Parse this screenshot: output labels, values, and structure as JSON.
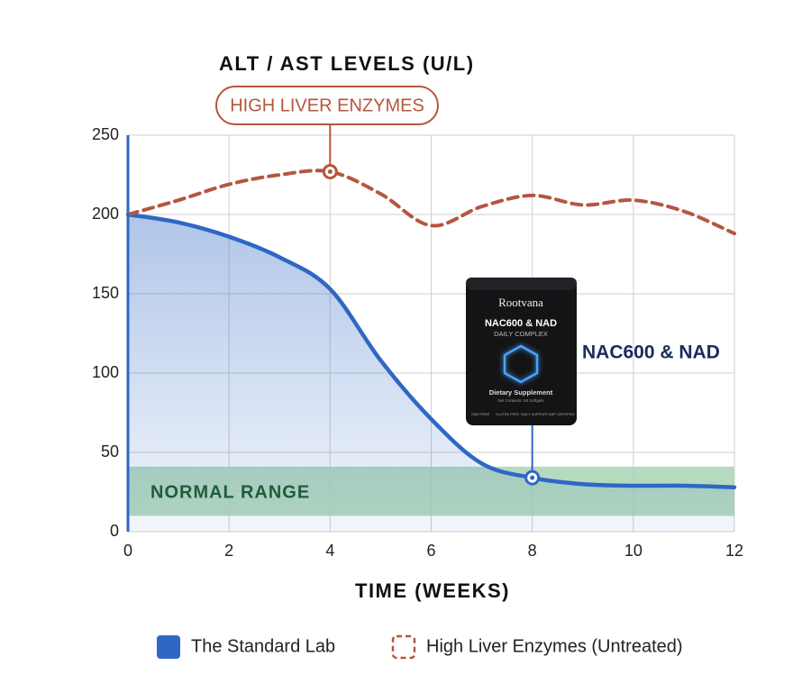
{
  "chart_data": {
    "type": "line",
    "title": "ALT / AST LEVELS (U/L)",
    "x_label": "TIME (WEEKS)",
    "x": [
      0,
      1,
      2,
      3,
      4,
      5,
      6,
      7,
      8,
      9,
      10,
      11,
      12
    ],
    "series": [
      {
        "name": "The Standard Lab",
        "color": "#2f67c4",
        "style": "solid",
        "fill": true,
        "values": [
          200,
          195,
          186,
          173,
          153,
          108,
          71,
          43,
          34,
          30,
          29,
          29,
          28
        ]
      },
      {
        "name": "High Liver Enzymes (Untreated)",
        "color": "#b5563e",
        "style": "dashed",
        "fill": false,
        "values": [
          200,
          209,
          219,
          225,
          227,
          213,
          193,
          205,
          212,
          206,
          209,
          202,
          188
        ]
      }
    ],
    "xlim": [
      0,
      12
    ],
    "xticks": [
      0,
      2,
      4,
      6,
      8,
      10,
      12
    ],
    "ylim": [
      0,
      250
    ],
    "yticks": [
      0,
      50,
      100,
      150,
      200,
      250
    ],
    "grid": true,
    "legend": "bottom",
    "normal_range": {
      "label": "NORMAL RANGE",
      "range": [
        10,
        41
      ],
      "color": "#a9d4b5"
    },
    "annotations": [
      {
        "text": "HIGH LIVER ENZYMES",
        "x": 4,
        "y": 227,
        "color": "#b5563e"
      },
      {
        "text": "NAC600 & NAD",
        "x": 8,
        "y": 34,
        "color": "#1b2a5e"
      }
    ],
    "product": {
      "brand": "Rootvana",
      "name": "NAC600 & NAD",
      "subtitle": "DAILY COMPLEX",
      "caption": "Dietary Supplement",
      "contents": "Net Contents: 60 Softgels",
      "badges": [
        "GMO FREE",
        "GLUTEN FREE",
        "DAILY SUPPORT",
        "GMP CERTIFIED"
      ]
    }
  }
}
